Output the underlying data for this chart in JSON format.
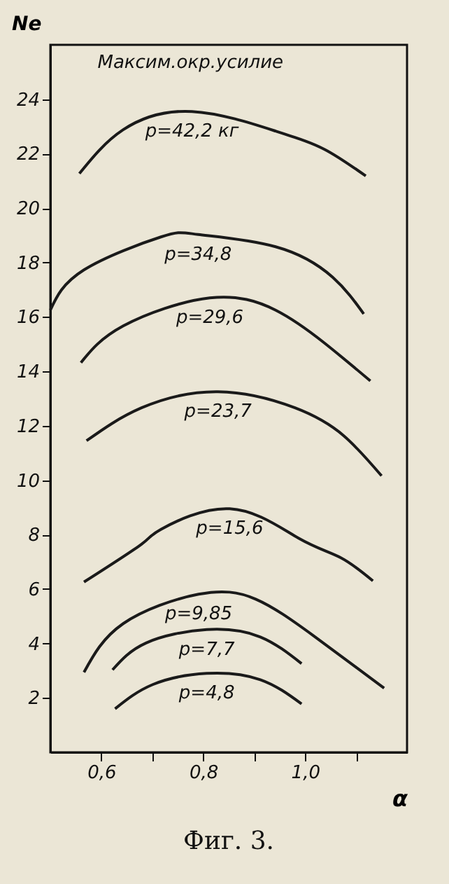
{
  "chart_data": {
    "type": "line",
    "xlabel": "α",
    "ylabel": "Ne",
    "xlim": [
      0.5,
      1.2
    ],
    "ylim": [
      0,
      26
    ],
    "xticks": [
      {
        "value": 0.6,
        "label": "0,6"
      },
      {
        "value": 0.7,
        "label": null
      },
      {
        "value": 0.8,
        "label": "0,8"
      },
      {
        "value": 0.9,
        "label": null
      },
      {
        "value": 1.0,
        "label": "1,0"
      },
      {
        "value": 1.1,
        "label": null
      }
    ],
    "yticks": [
      2,
      4,
      6,
      8,
      10,
      12,
      14,
      16,
      18,
      20,
      22,
      24
    ],
    "grid": false,
    "legend": false,
    "marker": "none",
    "line_style": "solid",
    "annotations": [
      {
        "text": "Максим.окр.усилие",
        "x": 0.72,
        "y": 23.5
      },
      "Фиг. 3."
    ],
    "series": [
      {
        "name": "p=42,2 кг",
        "color": "#1a1a1a",
        "x": [
          0.557,
          0.643,
          0.778,
          0.942,
          1.038,
          1.119
        ],
        "values": [
          21.27,
          22.88,
          23.55,
          22.83,
          22.16,
          21.18
        ]
      },
      {
        "name": "p=34,8",
        "color": "#1a1a1a",
        "x": [
          0.5,
          0.566,
          0.717,
          0.79,
          0.942,
          1.054,
          1.115
        ],
        "values": [
          16.25,
          17.73,
          18.94,
          19.03,
          18.58,
          17.46,
          16.11
        ]
      },
      {
        "name": "p=29,6",
        "color": "#1a1a1a",
        "x": [
          0.56,
          0.643,
          0.813,
          0.942,
          1.038,
          1.128
        ],
        "values": [
          14.32,
          15.67,
          16.7,
          16.25,
          15.04,
          13.65
        ]
      },
      {
        "name": "p=23,7",
        "color": "#1a1a1a",
        "x": [
          0.571,
          0.679,
          0.829,
          0.98,
          1.076,
          1.15
        ],
        "values": [
          11.45,
          12.66,
          13.25,
          12.66,
          11.63,
          10.16
        ]
      },
      {
        "name": "p=15,6",
        "color": "#1a1a1a",
        "x": [
          0.566,
          0.679,
          0.717,
          0.852,
          0.987,
          1.07,
          1.133
        ],
        "values": [
          6.26,
          7.65,
          8.19,
          8.95,
          7.87,
          7.15,
          6.3
        ]
      },
      {
        "name": "p=9,85",
        "color": "#1a1a1a",
        "x": [
          0.566,
          0.643,
          0.791,
          0.903,
          1.016,
          1.155
        ],
        "values": [
          2.94,
          4.73,
          5.81,
          5.63,
          4.29,
          2.36
        ]
      },
      {
        "name": "p=7,7",
        "color": "#1a1a1a",
        "x": [
          0.622,
          0.688,
          0.807,
          0.912,
          0.993
        ],
        "values": [
          3.03,
          4.02,
          4.51,
          4.24,
          3.26
        ]
      },
      {
        "name": "p=4,8",
        "color": "#1a1a1a",
        "x": [
          0.627,
          0.701,
          0.807,
          0.912,
          0.993
        ],
        "values": [
          1.6,
          2.49,
          2.9,
          2.67,
          1.78
        ]
      }
    ]
  }
}
